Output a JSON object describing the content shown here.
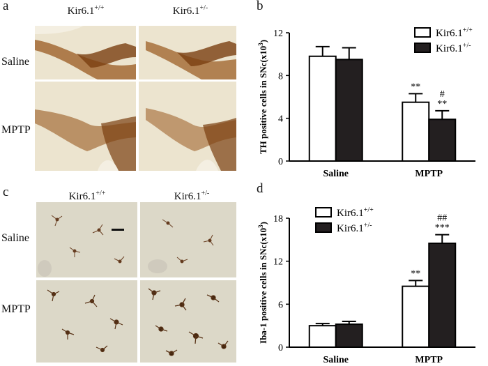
{
  "micrographs": [
    {
      "letter": "a",
      "columns": [
        "Kir6.1",
        "Kir6.1"
      ],
      "column_sups": [
        "+/+",
        "+/-"
      ],
      "rows": [
        "Saline",
        "MPTP"
      ],
      "stain": "TH",
      "colors": {
        "background": "#ece4cf",
        "stain": "#8a4a14"
      }
    },
    {
      "letter": "c",
      "columns": [
        "Kir6.1",
        "Kir6.1"
      ],
      "column_sups": [
        "+/+",
        "+/-"
      ],
      "rows": [
        "Saline",
        "MPTP"
      ],
      "stain": "Iba-1",
      "colors": {
        "background": "#dcd8c8",
        "stain": "#5a3418"
      }
    }
  ],
  "chart_data": [
    {
      "letter": "b",
      "type": "bar",
      "categories": [
        "Saline",
        "MPTP"
      ],
      "series": [
        {
          "name": "Kir6.1",
          "sup": "+/+",
          "color": "#ffffff",
          "values": [
            9.8,
            5.5
          ],
          "errors": [
            0.9,
            0.8
          ]
        },
        {
          "name": "Kir6.1",
          "sup": "+/-",
          "color": "#231f20",
          "values": [
            9.5,
            3.9
          ],
          "errors": [
            1.1,
            0.8
          ]
        }
      ],
      "annotations": [
        {
          "category": 1,
          "series": 0,
          "lines": [
            "**"
          ]
        },
        {
          "category": 1,
          "series": 1,
          "lines": [
            "#",
            "**"
          ]
        }
      ],
      "ylabel_main": "TH positive cells in SNc(x10",
      "ylabel_sup": "3",
      "ylabel_end": ")",
      "ylim": [
        0,
        12
      ],
      "yticks": [
        0,
        4,
        8,
        12
      ],
      "legend_position": "top-right",
      "grid": false
    },
    {
      "letter": "d",
      "type": "bar",
      "categories": [
        "Saline",
        "MPTP"
      ],
      "series": [
        {
          "name": "Kir6.1",
          "sup": "+/+",
          "color": "#ffffff",
          "values": [
            3.0,
            8.5
          ],
          "errors": [
            0.3,
            0.8
          ]
        },
        {
          "name": "Kir6.1",
          "sup": "+/-",
          "color": "#231f20",
          "values": [
            3.2,
            14.5
          ],
          "errors": [
            0.4,
            1.2
          ]
        }
      ],
      "annotations": [
        {
          "category": 1,
          "series": 0,
          "lines": [
            "**"
          ]
        },
        {
          "category": 1,
          "series": 1,
          "lines": [
            "##",
            "***"
          ]
        }
      ],
      "ylabel_main": "Iba-1 positive cells in SNc(x10",
      "ylabel_sup": "3",
      "ylabel_end": ")",
      "ylim": [
        0,
        18
      ],
      "yticks": [
        0,
        6,
        12,
        18
      ],
      "legend_position": "top-left",
      "grid": false
    }
  ]
}
